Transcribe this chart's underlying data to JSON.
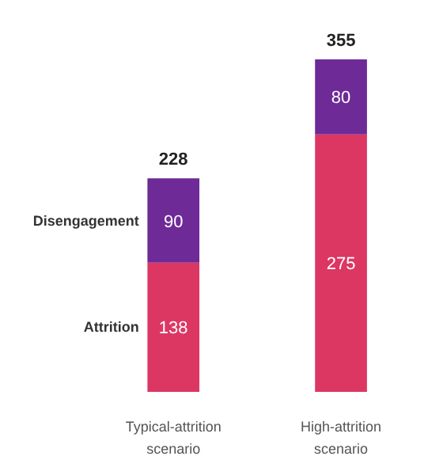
{
  "chart_data": {
    "type": "bar",
    "stacked": true,
    "categories": [
      "Typical-attrition scenario",
      "High-attrition scenario"
    ],
    "series": [
      {
        "name": "Attrition",
        "color": "#dc3763",
        "values": [
          138,
          275
        ]
      },
      {
        "name": "Disengagement",
        "color": "#6e2a96",
        "values": [
          90,
          80
        ]
      }
    ],
    "data_labels": true,
    "totals": [
      "228",
      "355"
    ],
    "grid": false
  }
}
